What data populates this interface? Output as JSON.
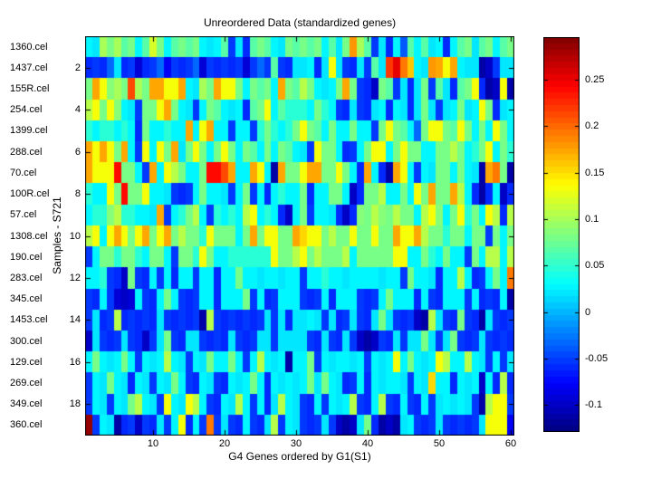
{
  "chart_data": {
    "type": "heatmap",
    "title": "Unreordered Data (standardized genes)",
    "xlabel": "G4 Genes ordered by G1(S1)",
    "ylabel": "Samples - S721",
    "colormap": "jet",
    "grid": false,
    "legend_position": "colorbar-right",
    "value_range": [
      -0.129,
      0.296
    ],
    "colorbar_tick_labels": [
      "0.25",
      "0.2",
      "0.15",
      "0.1",
      "0.05",
      "0",
      "-0.05",
      "-0.1"
    ],
    "colorbar_tick_values": [
      0.25,
      0.2,
      0.15,
      0.1,
      0.05,
      0,
      -0.05,
      -0.1
    ],
    "x_ticks": [
      10,
      20,
      30,
      40,
      50,
      60
    ],
    "y_ticks": [
      2,
      4,
      6,
      8,
      10,
      12,
      14,
      16,
      18
    ],
    "n_cols": 60,
    "rows": [
      "1360.cel",
      "1437.cel",
      "155R.cel",
      "254.cel",
      "1399.cel",
      "288.cel",
      "70.cel",
      "100R.cel",
      "57.cel",
      "1308.cel",
      "190.cel",
      "283.cel",
      "345.cel",
      "1453.cel",
      "300.cel",
      "129.cel",
      "269.cel",
      "349.cel",
      "360.cel"
    ],
    "values": [
      [
        0.03,
        0.02,
        0.1,
        0.08,
        0.1,
        0.07,
        0.08,
        0.03,
        0.07,
        0.12,
        0.08,
        0.03,
        0.07,
        0.08,
        0.07,
        0.08,
        0.03,
        0.02,
        0.03,
        0.07,
        -0.05,
        0.02,
        -0.06,
        0.07,
        0.08,
        0.07,
        0.03,
        0.02,
        0.08,
        0.07,
        0.08,
        0.07,
        0.08,
        0.03,
        0.07,
        0.02,
        0.08,
        0.18,
        0.1,
        0.07,
        -0.05,
        0.02,
        -0.06,
        0.03,
        -0.04,
        0.07,
        0.03,
        0.07,
        0.02,
        0.03,
        -0.06,
        0.03,
        0.07,
        0.08,
        0.02,
        0.07,
        0.08,
        0.03,
        0.07,
        0.08
      ],
      [
        -0.06,
        -0.05,
        -0.06,
        -0.03,
        0.02,
        -0.06,
        -0.05,
        -0.09,
        -0.06,
        -0.05,
        -0.03,
        -0.08,
        -0.05,
        -0.06,
        -0.05,
        -0.03,
        -0.09,
        -0.05,
        -0.06,
        -0.05,
        -0.06,
        -0.05,
        -0.09,
        -0.05,
        -0.03,
        -0.05,
        0.07,
        -0.05,
        -0.06,
        0.02,
        0.02,
        0.03,
        -0.06,
        0.02,
        0.13,
        0.02,
        -0.05,
        -0.06,
        0.02,
        -0.05,
        0.07,
        0.02,
        0.22,
        0.25,
        0.19,
        0.16,
        0.03,
        0.02,
        0.18,
        0.17,
        0.13,
        0.17,
        0.03,
        0.02,
        0.02,
        -0.11,
        -0.1,
        -0.05,
        0.02,
        0.02
      ],
      [
        0.08,
        0.175,
        0.13,
        0.09,
        0.1,
        0.08,
        0.215,
        0.1,
        0.08,
        0.175,
        0.175,
        0.13,
        0.13,
        0.175,
        0.03,
        0.02,
        0.1,
        0.08,
        0.175,
        0.13,
        0.13,
        0.08,
        0.03,
        0.08,
        0.07,
        0.08,
        0.03,
        0.175,
        0.08,
        0.07,
        0.105,
        0.08,
        0.03,
        0.02,
        0.03,
        0.08,
        0.175,
        0.08,
        -0.05,
        -0.06,
        -0.1,
        0.08,
        0.07,
        -0.05,
        0.02,
        -0.06,
        0.02,
        0.08,
        -0.05,
        0.07,
        0.02,
        -0.06,
        0.07,
        0.08,
        0.13,
        -0.06,
        -0.11,
        -0.1,
        0.13,
        -0.115
      ],
      [
        0.105,
        0.13,
        0.08,
        0.13,
        0.09,
        0.03,
        0.02,
        -0.05,
        0.08,
        0.08,
        0.13,
        0.175,
        0.08,
        0.03,
        0.02,
        -0.05,
        0.03,
        0.08,
        0.07,
        0.03,
        0.02,
        0.03,
        -0.06,
        0.07,
        0.08,
        0.13,
        0.03,
        0.07,
        0.05,
        0.05,
        0.05,
        0.03,
        0.08,
        0.05,
        0.03,
        -0.05,
        -0.06,
        0.02,
        -0.05,
        -0.06,
        0.02,
        0.03,
        -0.06,
        0.03,
        0.02,
        -0.06,
        0.02,
        0.08,
        0.02,
        -0.05,
        0.02,
        0.03,
        0.08,
        0.02,
        0.03,
        0.13,
        0.08,
        -0.06,
        0.02,
        0.03
      ],
      [
        0.05,
        0.03,
        0.05,
        0.05,
        0.03,
        0.05,
        0.03,
        -0.06,
        0.08,
        0.03,
        0.03,
        0.05,
        0.03,
        0.03,
        0.175,
        0.03,
        0.13,
        0.175,
        0.03,
        0.03,
        -0.05,
        0.03,
        0.03,
        -0.05,
        0.05,
        0.08,
        0.05,
        0.03,
        0.05,
        0.08,
        0.13,
        0.08,
        0.07,
        0.03,
        0.08,
        0.03,
        0.03,
        0.08,
        0.03,
        0.03,
        -0.05,
        0.08,
        0.13,
        0.08,
        0.07,
        0.03,
        -0.03,
        0.08,
        0.13,
        0.13,
        0.08,
        0.07,
        0.13,
        0.08,
        0.03,
        0.08,
        0.03,
        0.13,
        0.08,
        0.03
      ],
      [
        0.175,
        0.13,
        0.175,
        0.13,
        0.08,
        0.175,
        0.03,
        -0.05,
        0.13,
        0.03,
        0.13,
        0.08,
        0.175,
        0.02,
        0.08,
        0.13,
        0.08,
        0.03,
        0.08,
        0.13,
        0.08,
        0.03,
        0.08,
        0.07,
        0.03,
        0.08,
        0.03,
        0.08,
        0.07,
        0.03,
        0.02,
        -0.05,
        0.13,
        0.08,
        0.08,
        0.03,
        -0.06,
        -0.05,
        0.03,
        0.08,
        0.13,
        0.13,
        0.03,
        0.08,
        0.13,
        0.08,
        0.08,
        0.03,
        0.03,
        0.08,
        0.08,
        0.105,
        0.08,
        0.03,
        0.05,
        0.08,
        0.13,
        0.03,
        0.08,
        0.05
      ],
      [
        0.175,
        0.13,
        0.13,
        0.13,
        0.24,
        0.08,
        0.08,
        0.03,
        -0.05,
        0.175,
        0.03,
        0.13,
        0.105,
        0.08,
        0.03,
        0.03,
        0.08,
        0.24,
        0.24,
        0.215,
        0.175,
        0.03,
        0.03,
        0.175,
        0.13,
        0.03,
        -0.115,
        0.175,
        0.08,
        0.08,
        0.13,
        0.175,
        0.175,
        0.08,
        0.08,
        0.13,
        0.08,
        0.03,
        -0.06,
        0.175,
        0.03,
        -0.06,
        -0.11,
        0.175,
        0.13,
        0.03,
        -0.05,
        0.03,
        0.02,
        0.08,
        0.08,
        0.03,
        0.08,
        0.03,
        0.02,
        -0.115,
        0.175,
        0.19,
        0.08,
        -0.115
      ],
      [
        0.05,
        0.03,
        0.03,
        0.13,
        0.08,
        0.24,
        0.08,
        0.08,
        0.13,
        0.03,
        0.03,
        0.02,
        -0.05,
        -0.06,
        -0.05,
        0.03,
        0.08,
        0.03,
        0.03,
        0.02,
        -0.05,
        0.03,
        0.08,
        -0.05,
        0.03,
        -0.06,
        0.03,
        0.05,
        0.03,
        0.03,
        0.08,
        -0.06,
        0.03,
        0.03,
        0.08,
        0.08,
        0.03,
        -0.1,
        -0.06,
        0.08,
        0.08,
        0.105,
        0.03,
        0.03,
        0.08,
        0.03,
        0.13,
        0.08,
        0.175,
        0.08,
        0.08,
        0.175,
        0.105,
        0.03,
        -0.06,
        -0.115,
        -0.06,
        0.03,
        -0.1,
        -0.06
      ],
      [
        0.03,
        0.05,
        0.05,
        0.09,
        0.105,
        0.05,
        0.05,
        0.03,
        0.03,
        0.02,
        0.175,
        -0.05,
        0.03,
        0.05,
        0.08,
        0.105,
        0.03,
        -0.05,
        0.05,
        0.03,
        0.05,
        0.03,
        0.105,
        0.13,
        0.03,
        0.05,
        0.03,
        -0.06,
        -0.1,
        0.03,
        0.08,
        -0.05,
        0.03,
        0.03,
        0.02,
        -0.06,
        -0.1,
        -0.06,
        0.09,
        0.08,
        0.105,
        0.09,
        0.08,
        0.105,
        0.08,
        0.08,
        0.03,
        0.105,
        0.13,
        0.09,
        0.03,
        0.08,
        0.13,
        0.05,
        0.08,
        0.03,
        0.13,
        0.105,
        -0.06,
        0.105
      ],
      [
        0.105,
        0.13,
        0.03,
        0.13,
        0.175,
        0.13,
        0.08,
        0.13,
        0.175,
        0.08,
        0.13,
        0.175,
        0.08,
        0.105,
        0.08,
        0.08,
        0.05,
        0.13,
        0.08,
        0.08,
        0.08,
        0.03,
        0.08,
        0.175,
        0.08,
        0.13,
        0.13,
        0.08,
        0.08,
        0.175,
        0.15,
        0.13,
        0.13,
        0.08,
        0.105,
        0.08,
        0.08,
        0.13,
        0.08,
        0.08,
        0.13,
        0.08,
        0.08,
        0.175,
        0.13,
        0.13,
        0.175,
        0.105,
        0.08,
        0.08,
        0.05,
        0.08,
        0.08,
        0.03,
        0.08,
        0.08,
        -0.05,
        0.08,
        0.03,
        0.08
      ],
      [
        -0.05,
        0.03,
        0.08,
        0.08,
        0.05,
        0.08,
        0.08,
        0.05,
        0.03,
        0.08,
        0.08,
        0.03,
        -0.05,
        0.08,
        0.08,
        0.05,
        0.13,
        0.08,
        0.03,
        0.03,
        0.05,
        0.05,
        0.05,
        0.05,
        0.05,
        0.05,
        0.13,
        0.08,
        0.08,
        0.105,
        0.13,
        0.08,
        0.105,
        0.08,
        0.08,
        0.08,
        0.105,
        0.03,
        0.08,
        0.08,
        0.08,
        0.08,
        0.08,
        0.13,
        0.13,
        0.03,
        0.03,
        0.08,
        0.05,
        0.03,
        0.08,
        0.03,
        0.03,
        -0.05,
        0.08,
        0.03,
        0.105,
        0.105,
        0.03,
        0.105
      ],
      [
        0.03,
        0.03,
        0.05,
        -0.05,
        -0.06,
        -0.1,
        0.08,
        -0.05,
        -0.06,
        0.03,
        -0.05,
        0.03,
        -0.06,
        0.03,
        0.03,
        -0.05,
        0.03,
        0.03,
        -0.06,
        0.03,
        0.03,
        0.08,
        0.03,
        0.03,
        0.02,
        0.03,
        0.03,
        0.02,
        0.03,
        0.03,
        -0.05,
        0.03,
        0.03,
        0.05,
        0.03,
        0.03,
        0.02,
        0.03,
        0.03,
        0.03,
        0.03,
        0.02,
        0.03,
        0.03,
        -0.05,
        0.08,
        0.03,
        0.03,
        0.02,
        -0.06,
        0.03,
        0.03,
        0.105,
        0.03,
        -0.06,
        -0.05,
        0.03,
        0.08,
        0.03,
        0.19
      ],
      [
        -0.05,
        -0.06,
        0.03,
        -0.05,
        -0.09,
        -0.1,
        -0.09,
        0.03,
        -0.05,
        -0.06,
        0.03,
        0.08,
        0.03,
        -0.05,
        -0.06,
        -0.05,
        0.03,
        0.03,
        -0.06,
        0.03,
        0.03,
        0.03,
        0.08,
        -0.05,
        0.03,
        -0.06,
        -0.05,
        0.03,
        0.03,
        0.03,
        -0.05,
        -0.06,
        -0.05,
        0.03,
        -0.06,
        0.03,
        0.03,
        0.03,
        -0.05,
        -0.06,
        -0.05,
        0.03,
        0.08,
        0.03,
        0.03,
        0.03,
        -0.06,
        0.03,
        -0.05,
        -0.06,
        0.03,
        0.03,
        0.03,
        -0.05,
        0.03,
        -0.06,
        -0.05,
        -0.06,
        0.03,
        -0.115
      ],
      [
        -0.05,
        0.02,
        -0.06,
        -0.05,
        0.105,
        -0.06,
        -0.05,
        -0.06,
        -0.05,
        -0.06,
        0.02,
        -0.05,
        -0.06,
        -0.05,
        -0.06,
        -0.05,
        -0.115,
        0.105,
        -0.05,
        -0.06,
        -0.05,
        -0.06,
        -0.05,
        -0.06,
        -0.05,
        0.02,
        -0.05,
        0.02,
        -0.06,
        0.02,
        0.02,
        0.03,
        0.02,
        -0.05,
        0.02,
        -0.06,
        -0.05,
        0.02,
        -0.05,
        -0.06,
        0.02,
        0.08,
        0.02,
        -0.05,
        -0.06,
        -0.05,
        -0.1,
        -0.115,
        0.105,
        0.02,
        -0.05,
        -0.06,
        0.08,
        -0.05,
        -0.06,
        -0.115,
        0.02,
        -0.05,
        -0.06,
        -0.05
      ],
      [
        -0.1,
        0.02,
        -0.05,
        -0.06,
        -0.05,
        0.02,
        -0.05,
        -0.06,
        -0.1,
        -0.05,
        0.02,
        0.08,
        -0.05,
        -0.06,
        0.02,
        0.02,
        -0.05,
        -0.06,
        -0.05,
        -0.06,
        0.02,
        -0.05,
        -0.06,
        -0.05,
        0.02,
        0.02,
        -0.05,
        0.02,
        0.02,
        0.02,
        0.02,
        -0.05,
        -0.06,
        0.02,
        -0.05,
        -0.06,
        0.02,
        -0.05,
        -0.1,
        -0.115,
        -0.1,
        -0.05,
        -0.06,
        0.02,
        -0.05,
        0.02,
        0.02,
        0.08,
        0.02,
        -0.05,
        0.02,
        0.08,
        -0.05,
        -0.06,
        -0.05,
        0.02,
        -0.05,
        -0.06,
        -0.05,
        -0.06
      ],
      [
        0.03,
        0.08,
        0.03,
        0.02,
        0.03,
        0.08,
        0.03,
        -0.05,
        0.03,
        0.02,
        0.03,
        0.105,
        0.03,
        0.02,
        -0.05,
        0.03,
        0.02,
        0.08,
        0.03,
        0.03,
        0.08,
        0.03,
        -0.05,
        0.03,
        0.105,
        0.03,
        0.02,
        0.03,
        -0.115,
        0.03,
        0.03,
        0.08,
        -0.05,
        0.03,
        0.02,
        0.03,
        0.03,
        0.02,
        0.03,
        -0.05,
        0.03,
        0.02,
        0.03,
        0.13,
        0.03,
        0.08,
        0.03,
        0.02,
        0.03,
        0.13,
        0.105,
        0.03,
        0.03,
        0.105,
        0.03,
        0.02,
        -0.05,
        0.03,
        -0.05,
        0.02
      ],
      [
        -0.05,
        0.03,
        0.02,
        0.08,
        0.03,
        0.02,
        -0.06,
        0.03,
        0.02,
        -0.05,
        0.03,
        0.02,
        0.08,
        0.03,
        -0.05,
        -0.06,
        0.03,
        0.02,
        -0.05,
        -0.06,
        0.03,
        0.02,
        0.03,
        0.08,
        0.03,
        -0.06,
        0.03,
        0.02,
        0.03,
        0.02,
        0.03,
        0.08,
        0.02,
        0.08,
        0.03,
        0.02,
        -0.06,
        -0.05,
        0.03,
        -0.06,
        0.03,
        0.02,
        0.03,
        0.03,
        0.02,
        -0.05,
        0.03,
        0.02,
        0.15,
        0.03,
        0.03,
        -0.06,
        0.03,
        0.02,
        0.03,
        -0.1,
        0.03,
        -0.06,
        0.105,
        -0.06
      ],
      [
        -0.05,
        0.03,
        0.02,
        -0.05,
        0.03,
        0.02,
        0.08,
        0.105,
        0.03,
        0.02,
        -0.05,
        0.13,
        0.03,
        0.02,
        0.13,
        0.105,
        0.03,
        -0.05,
        -0.06,
        0.03,
        0.02,
        0.105,
        0.03,
        -0.05,
        0.03,
        -0.06,
        0.02,
        0.105,
        0.03,
        0.02,
        -0.05,
        -0.06,
        0.03,
        -0.05,
        0.03,
        0.02,
        0.03,
        0.105,
        -0.05,
        -0.06,
        0.03,
        0.105,
        -0.05,
        -0.06,
        0.03,
        -0.05,
        -0.06,
        0.03,
        -0.05,
        0.02,
        0.03,
        0.02,
        0.03,
        0.02,
        -0.05,
        -0.115,
        0.105,
        0.13,
        0.13,
        -0.05
      ],
      [
        0.285,
        -0.05,
        0.03,
        0.02,
        -0.115,
        -0.06,
        -0.05,
        -0.1,
        -0.05,
        -0.06,
        0.02,
        -0.05,
        0.03,
        0.13,
        -0.06,
        0.03,
        -0.05,
        0.19,
        -0.05,
        0.02,
        -0.05,
        -0.06,
        0.03,
        -0.05,
        -0.06,
        0.02,
        0.105,
        -0.05,
        0.03,
        0.02,
        -0.05,
        -0.06,
        -0.05,
        0.02,
        -0.05,
        -0.1,
        -0.115,
        -0.1,
        0.02,
        0.08,
        -0.06,
        -0.115,
        -0.1,
        -0.115,
        0.02,
        0.03,
        -0.05,
        -0.06,
        -0.05,
        0.02,
        -0.05,
        -0.06,
        -0.05,
        -0.06,
        -0.05,
        0.02,
        0.13,
        0.13,
        0.13,
        -0.08
      ]
    ]
  }
}
